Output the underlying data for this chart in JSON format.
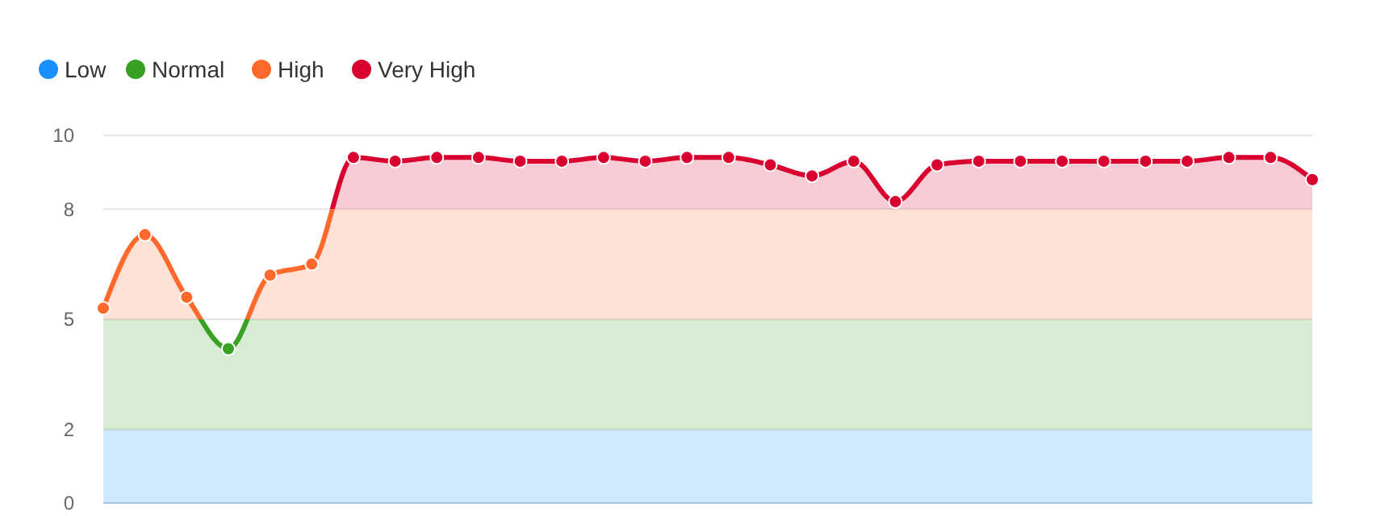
{
  "chart_data": {
    "type": "line",
    "categories": [
      null,
      null,
      null,
      null,
      null,
      null,
      null,
      null,
      null,
      null,
      null,
      null,
      null,
      null,
      null,
      null,
      null,
      null,
      null,
      null,
      null,
      null,
      null,
      null,
      null,
      null,
      null,
      null,
      null,
      null
    ],
    "series": [
      {
        "values": [
          5.3,
          7.3,
          5.6,
          4.2,
          6.2,
          6.5,
          9.4,
          9.3,
          9.4,
          9.4,
          9.3,
          9.3,
          9.4,
          9.3,
          9.4,
          9.4,
          9.2,
          8.9,
          9.3,
          8.2,
          9.2,
          9.3,
          9.3,
          9.3,
          9.3,
          9.3,
          9.3,
          9.4,
          9.4,
          8.8
        ]
      }
    ],
    "bands": [
      {
        "axis": "y",
        "from": 0,
        "to": 2,
        "label": "Low",
        "color": "#1890ff"
      },
      {
        "axis": "y",
        "from": 2,
        "to": 5,
        "label": "Normal",
        "color": "#38a022"
      },
      {
        "axis": "y",
        "from": 5,
        "to": 8,
        "label": "High",
        "color": "#ff6a2c"
      },
      {
        "axis": "y",
        "from": 8,
        "to": 10,
        "label": "Very High",
        "color": "#d9002f"
      }
    ],
    "ylim": [
      0,
      10
    ],
    "yticks": [
      0,
      2,
      5,
      8,
      10
    ],
    "grid": "y",
    "legend": "top left",
    "marker": "circle",
    "line_style": "solid"
  }
}
